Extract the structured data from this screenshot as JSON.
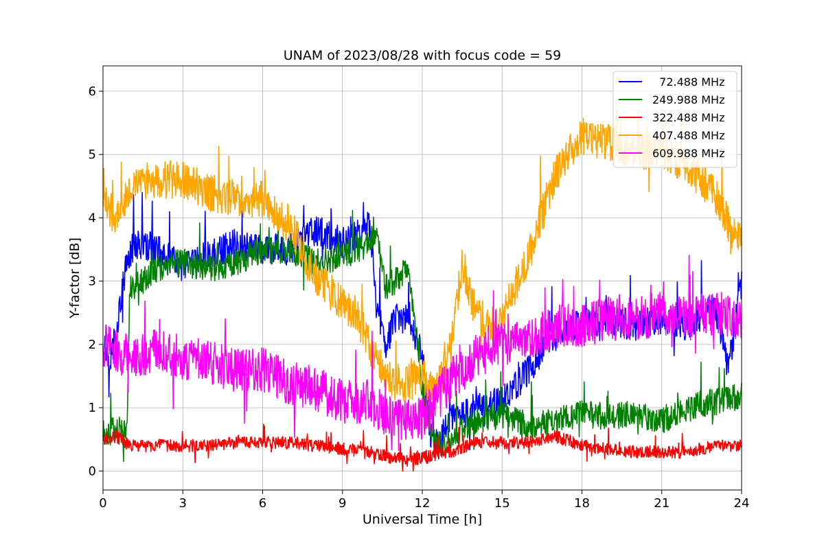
{
  "chart_data": {
    "type": "line",
    "title": "UNAM of 2023/08/28 with focus code = 59",
    "xlabel": "Universal Time [h]",
    "ylabel": "Y-factor [dB]",
    "xlim": [
      0,
      24
    ],
    "ylim": [
      -0.3,
      6.4
    ],
    "xticks": [
      0,
      3,
      6,
      9,
      12,
      15,
      18,
      21,
      24
    ],
    "yticks": [
      0,
      1,
      2,
      3,
      4,
      5,
      6
    ],
    "grid": true,
    "legend_position": "top-right",
    "series": [
      {
        "name": "  72.488 MHz",
        "color": "#0000ff",
        "noise": 0.25,
        "x": [
          0,
          0.3,
          0.6,
          0.9,
          1.2,
          2,
          3,
          4,
          5,
          6,
          7,
          8,
          9,
          9.5,
          10,
          10.3,
          10.6,
          11,
          11.5,
          12,
          12.3,
          12.6,
          13,
          14,
          15,
          16,
          17,
          18,
          19,
          20,
          21,
          22,
          23,
          23.5,
          24
        ],
        "y": [
          2.0,
          1.8,
          2.5,
          3.3,
          3.6,
          3.5,
          3.2,
          3.4,
          3.6,
          3.5,
          3.5,
          3.8,
          3.6,
          3.7,
          3.9,
          2.6,
          2.0,
          2.4,
          2.4,
          1.8,
          0.6,
          0.4,
          0.8,
          1.0,
          1.1,
          1.6,
          2.2,
          2.3,
          2.4,
          2.3,
          2.4,
          2.3,
          2.6,
          1.6,
          3.0
        ]
      },
      {
        "name": "249.988 MHz",
        "color": "#008000",
        "noise": 0.22,
        "x": [
          0,
          0.5,
          0.9,
          1.0,
          1.5,
          2,
          3,
          4,
          5,
          6,
          7,
          8,
          9,
          9.5,
          10,
          10.3,
          10.6,
          11,
          11.5,
          12,
          12.5,
          13,
          14,
          15,
          16,
          17,
          18,
          19,
          20,
          21,
          22,
          23,
          24
        ],
        "y": [
          0.6,
          0.65,
          0.6,
          2.9,
          3.0,
          3.2,
          3.3,
          3.2,
          3.3,
          3.5,
          3.5,
          3.3,
          3.4,
          3.5,
          3.6,
          3.8,
          2.9,
          3.0,
          3.2,
          1.3,
          0.4,
          0.5,
          0.8,
          0.9,
          0.7,
          0.8,
          0.9,
          0.85,
          0.9,
          0.8,
          1.0,
          1.1,
          1.2
        ]
      },
      {
        "name": "322.488 MHz",
        "color": "#ff0000",
        "noise": 0.1,
        "x": [
          0,
          0.5,
          1,
          2,
          3,
          4,
          5,
          6,
          7,
          8,
          9,
          10,
          11,
          12,
          13,
          14,
          15,
          16,
          17,
          18,
          19,
          20,
          21,
          22,
          23,
          24
        ],
        "y": [
          0.5,
          0.55,
          0.4,
          0.4,
          0.4,
          0.4,
          0.45,
          0.45,
          0.45,
          0.4,
          0.35,
          0.3,
          0.2,
          0.2,
          0.3,
          0.45,
          0.45,
          0.45,
          0.55,
          0.4,
          0.35,
          0.3,
          0.3,
          0.3,
          0.4,
          0.4
        ]
      },
      {
        "name": "407.488 MHz",
        "color": "#ffa500",
        "noise": 0.3,
        "x": [
          0,
          0.5,
          1,
          2,
          3,
          4,
          5,
          6,
          7,
          7.5,
          8,
          9,
          9.5,
          10,
          10.5,
          11,
          11.5,
          12,
          12.5,
          13,
          13.5,
          14,
          14.5,
          15,
          16,
          17,
          18,
          19,
          20,
          21,
          22,
          23,
          23.5,
          24
        ],
        "y": [
          4.3,
          4.0,
          4.5,
          4.6,
          4.6,
          4.4,
          4.3,
          4.3,
          3.9,
          3.5,
          3.1,
          2.6,
          2.5,
          2.0,
          1.6,
          1.4,
          1.4,
          1.5,
          1.2,
          1.8,
          3.3,
          2.5,
          2.3,
          2.4,
          3.4,
          4.7,
          5.3,
          5.2,
          5.0,
          5.1,
          4.8,
          4.4,
          3.9,
          3.6
        ]
      },
      {
        "name": "609.988 MHz",
        "color": "#ff00ff",
        "noise": 0.35,
        "x": [
          0,
          1,
          2,
          3,
          4,
          5,
          6,
          7,
          8,
          9,
          10,
          11,
          12,
          13,
          14,
          15,
          16,
          17,
          18,
          19,
          20,
          21,
          22,
          23,
          24
        ],
        "y": [
          2.0,
          1.8,
          1.9,
          1.8,
          1.7,
          1.6,
          1.6,
          1.4,
          1.3,
          1.1,
          1.1,
          0.8,
          0.8,
          1.4,
          1.8,
          2.0,
          2.1,
          2.3,
          2.3,
          2.4,
          2.4,
          2.5,
          2.4,
          2.5,
          2.4
        ]
      }
    ]
  }
}
